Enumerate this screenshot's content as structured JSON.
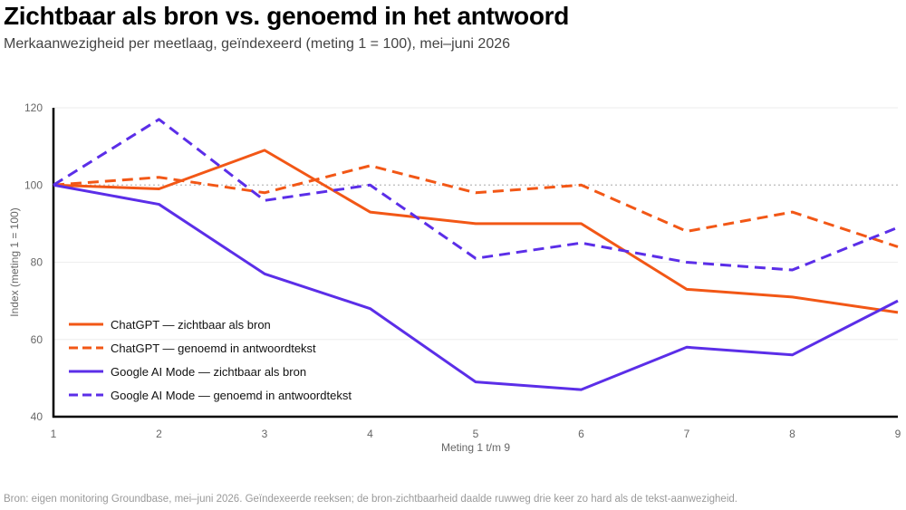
{
  "title": "Zichtbaar als bron vs. genoemd in het antwoord",
  "subtitle": "Merkaanwezigheid per meetlaag, geïndexeerd (meting 1 = 100), mei–juni 2026",
  "source": "Bron: eigen monitoring Groundbase, mei–juni 2026. Geïndexeerde reeksen; de bron-zichtbaarheid daalde ruwweg drie keer zo hard als de tekst-aanwezigheid.",
  "colors": {
    "chatgpt": "#f25716",
    "google": "#5b2ee8",
    "reference": "#bbbbbb",
    "grid": "#eeeeee",
    "axis": "#000000"
  },
  "chart_data": {
    "type": "line",
    "xlabel": "Meting 1 t/m 9",
    "ylabel": "Index (meting 1 = 100)",
    "x": [
      1,
      2,
      3,
      4,
      5,
      6,
      7,
      8,
      9
    ],
    "ylim": [
      40,
      120
    ],
    "yticks": [
      40,
      60,
      80,
      100,
      120
    ],
    "reference_line": 100,
    "grid": true,
    "legend_position": "bottom-left",
    "series": [
      {
        "name": "ChatGPT — zichtbaar als bron",
        "color": "#f25716",
        "dash": false,
        "values": [
          100,
          99,
          109,
          93,
          90,
          90,
          73,
          71,
          67
        ]
      },
      {
        "name": "ChatGPT — genoemd in antwoordtekst",
        "color": "#f25716",
        "dash": true,
        "values": [
          100,
          102,
          98,
          105,
          98,
          100,
          88,
          93,
          84
        ]
      },
      {
        "name": "Google AI Mode — zichtbaar als bron",
        "color": "#5b2ee8",
        "dash": false,
        "values": [
          100,
          95,
          77,
          68,
          49,
          47,
          58,
          56,
          70
        ]
      },
      {
        "name": "Google AI Mode — genoemd in antwoordtekst",
        "color": "#5b2ee8",
        "dash": true,
        "values": [
          100,
          117,
          96,
          100,
          81,
          85,
          80,
          78,
          89
        ]
      }
    ]
  }
}
